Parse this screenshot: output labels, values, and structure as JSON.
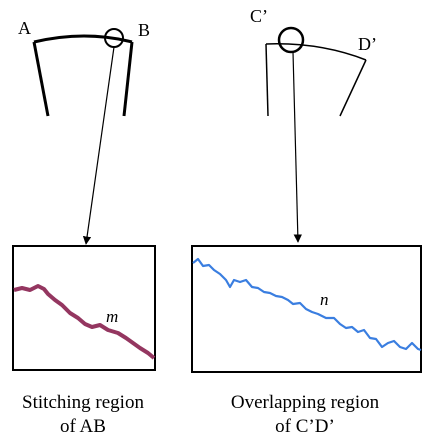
{
  "left": {
    "label_a": "A",
    "label_b": "B",
    "curve_label": "m",
    "caption_line1": "Stitching region",
    "caption_line2": "of AB"
  },
  "right": {
    "label_c": "C’",
    "label_d": "D’",
    "curve_label": "n",
    "caption_line1": "Overlapping region",
    "caption_line2": "of C’D’"
  }
}
